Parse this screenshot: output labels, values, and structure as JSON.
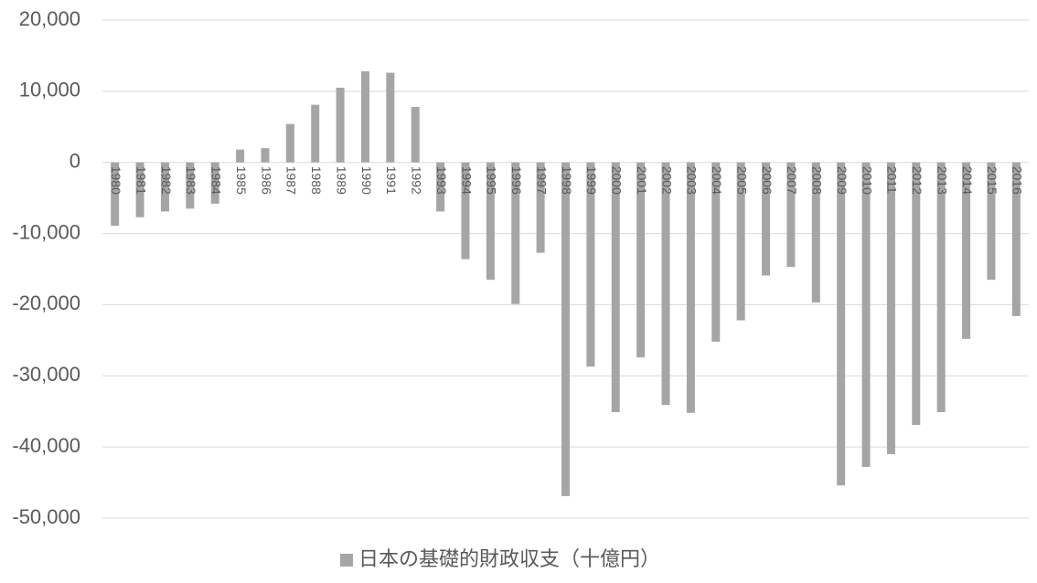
{
  "chart_data": {
    "type": "bar",
    "categories": [
      "1980",
      "1981",
      "1982",
      "1983",
      "1984",
      "1985",
      "1986",
      "1987",
      "1988",
      "1989",
      "1990",
      "1991",
      "1992",
      "1993",
      "1994",
      "1995",
      "1996",
      "1997",
      "1998",
      "1999",
      "2000",
      "2001",
      "2002",
      "2003",
      "2004",
      "2005",
      "2006",
      "2007",
      "2008",
      "2009",
      "2010",
      "2011",
      "2012",
      "2013",
      "2014",
      "2015",
      "2016"
    ],
    "series": [
      {
        "name": "日本の基礎的財政収支（十億円）",
        "color": "#a5a5a5",
        "values": [
          -8900,
          -7700,
          -6900,
          -6500,
          -5800,
          1800,
          2000,
          5400,
          8100,
          10500,
          12800,
          12600,
          7800,
          -6900,
          -13600,
          -16500,
          -19900,
          -12700,
          -46900,
          -28700,
          -35100,
          -27400,
          -34100,
          -35200,
          -25200,
          -22200,
          -15900,
          -14700,
          -19700,
          -45400,
          -42800,
          -41000,
          -36900,
          -35100,
          -24800,
          -16500,
          -21600
        ]
      }
    ],
    "ylim": [
      -50000,
      20000
    ],
    "yticks": [
      {
        "value": -50000,
        "label": "-50,000"
      },
      {
        "value": -40000,
        "label": "-40,000"
      },
      {
        "value": -30000,
        "label": "-30,000"
      },
      {
        "value": -20000,
        "label": "-20,000"
      },
      {
        "value": -10000,
        "label": "-10,000"
      },
      0,
      {
        "value": 10000,
        "label": "10,000"
      },
      {
        "value": 20000,
        "label": "20,000"
      }
    ],
    "grid": true,
    "legend": "bottom"
  }
}
